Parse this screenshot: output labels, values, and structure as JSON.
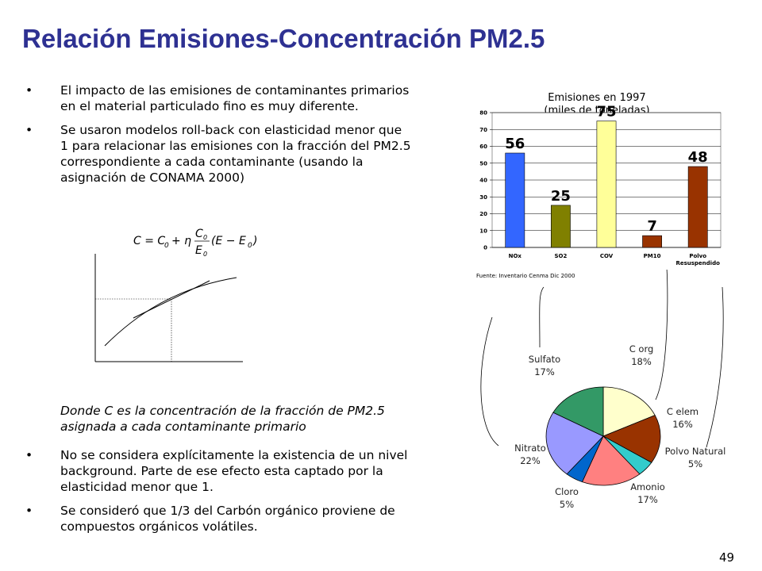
{
  "slide": {
    "title": "Relación Emisiones-Concentración PM2.5",
    "page_number": "49"
  },
  "text": {
    "bullet1": "El impacto de las emisiones de contaminantes primarios en el material particulado fino es muy diferente.",
    "bullet2": "Se usaron modelos roll-back con elasticidad menor que 1 para relacionar las emisiones con la fracción del PM2.5 correspondiente a cada contaminante (usando la asignación de CONAMA 2000)",
    "note": "Donde C es la concentración de la fracción de PM2.5 asignada a cada contaminante primario",
    "bullet3": "No se considera explícitamente la existencia de un nivel background. Parte de ese efecto esta captado por la elasticidad menor que 1.",
    "bullet4": "Se consideró que 1/3 del Carbón orgánico proviene de compuestos orgánicos volátiles."
  },
  "chart_data": [
    {
      "type": "bar",
      "title_line1": "Emisiones en 1997",
      "title_line2": "(miles de toneladas)",
      "source": "Fuente: Inventario Cenma Dic 2000",
      "categories": [
        "NOx",
        "SO2",
        "COV",
        "PM10",
        "Polvo Resuspendido"
      ],
      "values": [
        56,
        25,
        75,
        7,
        48
      ],
      "colors": [
        "#3366ff",
        "#808000",
        "#ffff99",
        "#993300",
        "#993300"
      ],
      "ylim": [
        0,
        80
      ],
      "yticks": [
        0,
        10,
        20,
        30,
        40,
        50,
        60,
        70,
        80
      ],
      "grid": true
    },
    {
      "type": "pie",
      "slices": [
        {
          "label": "C org",
          "value": 18,
          "text": "18%",
          "color": "#ffffcc"
        },
        {
          "label": "C elem",
          "value": 16,
          "text": "16%",
          "color": "#993300"
        },
        {
          "label": "Polvo Natural",
          "value": 5,
          "text": "5%",
          "color": "#33cccc"
        },
        {
          "label": "Amonio",
          "value": 17,
          "text": "17%",
          "color": "#ff8080"
        },
        {
          "label": "Cloro",
          "value": 5,
          "text": "5%",
          "color": "#0066cc"
        },
        {
          "label": "Nitrato",
          "value": 22,
          "text": "22%",
          "color": "#9999ff"
        },
        {
          "label": "Sulfato",
          "value": 17,
          "text": "17%",
          "color": "#339966"
        }
      ]
    }
  ]
}
